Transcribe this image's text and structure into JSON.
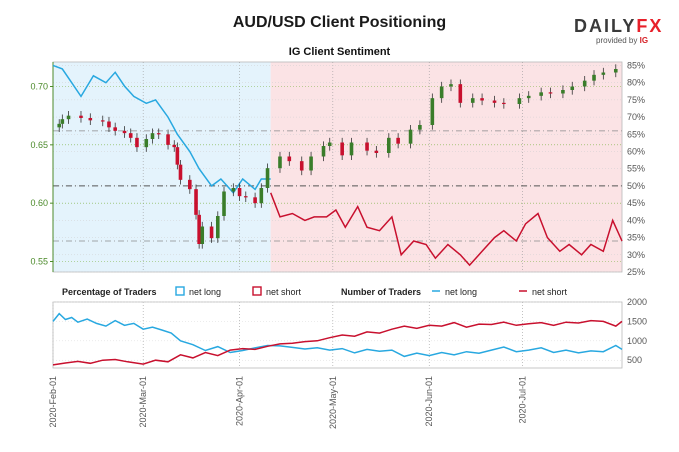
{
  "header": {
    "title": "AUD/USD Client Positioning",
    "logo_text_main": "DAILY",
    "logo_text_accent": "FX",
    "logo_byline": "provided by",
    "logo_byline_brand": "IG"
  },
  "chart_data": [
    {
      "type": "line",
      "title": "IG Client Sentiment",
      "x_date_ticks": [
        "2020-Feb-01",
        "2020-Mar-01",
        "2020-Apr-01",
        "2020-May-01",
        "2020-Jun-01",
        "2020-Jul-01"
      ],
      "y_left_ticks": [
        "0.70",
        "0.65",
        "0.60",
        "0.55"
      ],
      "y_right_ticks": [
        "85%",
        "80%",
        "75%",
        "70%",
        "65%",
        "60%",
        "55%",
        "50%",
        "45%",
        "40%",
        "35%",
        "30%",
        "25%"
      ],
      "y_left_range": [
        0.541,
        0.721
      ],
      "y_right_range": [
        25,
        86
      ],
      "reference_lines_pct": [
        66,
        50,
        34
      ],
      "colors": {
        "net_long": "#28a8e0",
        "net_short": "#c8102e",
        "candle_up": "#3a7d2a",
        "candle_down": "#c8102e",
        "long_region": "#e4f3fc",
        "short_region": "#fbe3e5"
      },
      "series": [
        {
          "name": "AUD/USD price",
          "kind": "candlestick",
          "close_by_date": [
            [
              "2020-02-03",
              0.668
            ],
            [
              "2020-02-04",
              0.672
            ],
            [
              "2020-02-06",
              0.675
            ],
            [
              "2020-02-10",
              0.673
            ],
            [
              "2020-02-13",
              0.671
            ],
            [
              "2020-02-17",
              0.67
            ],
            [
              "2020-02-19",
              0.665
            ],
            [
              "2020-02-21",
              0.662
            ],
            [
              "2020-02-24",
              0.66
            ],
            [
              "2020-02-26",
              0.656
            ],
            [
              "2020-02-28",
              0.648
            ],
            [
              "2020-03-02",
              0.655
            ],
            [
              "2020-03-04",
              0.66
            ],
            [
              "2020-03-06",
              0.659
            ],
            [
              "2020-03-09",
              0.65
            ],
            [
              "2020-03-11",
              0.648
            ],
            [
              "2020-03-12",
              0.633
            ],
            [
              "2020-03-13",
              0.62
            ],
            [
              "2020-03-16",
              0.612
            ],
            [
              "2020-03-18",
              0.59
            ],
            [
              "2020-03-19",
              0.565
            ],
            [
              "2020-03-20",
              0.58
            ],
            [
              "2020-03-23",
              0.57
            ],
            [
              "2020-03-25",
              0.589
            ],
            [
              "2020-03-27",
              0.61
            ],
            [
              "2020-03-30",
              0.613
            ],
            [
              "2020-04-01",
              0.606
            ],
            [
              "2020-04-03",
              0.605
            ],
            [
              "2020-04-06",
              0.6
            ],
            [
              "2020-04-08",
              0.613
            ],
            [
              "2020-04-10",
              0.63
            ],
            [
              "2020-04-14",
              0.64
            ],
            [
              "2020-04-17",
              0.636
            ],
            [
              "2020-04-21",
              0.628
            ],
            [
              "2020-04-24",
              0.64
            ],
            [
              "2020-04-28",
              0.649
            ],
            [
              "2020-04-30",
              0.652
            ],
            [
              "2020-05-04",
              0.641
            ],
            [
              "2020-05-07",
              0.652
            ],
            [
              "2020-05-12",
              0.645
            ],
            [
              "2020-05-15",
              0.643
            ],
            [
              "2020-05-19",
              0.656
            ],
            [
              "2020-05-22",
              0.651
            ],
            [
              "2020-05-26",
              0.663
            ],
            [
              "2020-05-29",
              0.667
            ],
            [
              "2020-06-02",
              0.69
            ],
            [
              "2020-06-05",
              0.7
            ],
            [
              "2020-06-08",
              0.702
            ],
            [
              "2020-06-11",
              0.686
            ],
            [
              "2020-06-15",
              0.69
            ],
            [
              "2020-06-18",
              0.688
            ],
            [
              "2020-06-22",
              0.686
            ],
            [
              "2020-06-25",
              0.685
            ],
            [
              "2020-06-30",
              0.69
            ],
            [
              "2020-07-03",
              0.692
            ],
            [
              "2020-07-07",
              0.695
            ],
            [
              "2020-07-10",
              0.694
            ],
            [
              "2020-07-14",
              0.697
            ],
            [
              "2020-07-17",
              0.7
            ],
            [
              "2020-07-21",
              0.705
            ],
            [
              "2020-07-24",
              0.71
            ],
            [
              "2020-07-27",
              0.712
            ],
            [
              "2020-07-31",
              0.715
            ]
          ]
        },
        {
          "name": "net long",
          "unit": "%",
          "values_by_date": [
            [
              "2020-02-01",
              85
            ],
            [
              "2020-02-04",
              84
            ],
            [
              "2020-02-07",
              80
            ],
            [
              "2020-02-10",
              76
            ],
            [
              "2020-02-14",
              82
            ],
            [
              "2020-02-18",
              80
            ],
            [
              "2020-02-21",
              83
            ],
            [
              "2020-02-24",
              79
            ],
            [
              "2020-02-27",
              76
            ],
            [
              "2020-03-02",
              74
            ],
            [
              "2020-03-05",
              75
            ],
            [
              "2020-03-09",
              70
            ],
            [
              "2020-03-12",
              65
            ],
            [
              "2020-03-16",
              60
            ],
            [
              "2020-03-19",
              55
            ],
            [
              "2020-03-23",
              50
            ],
            [
              "2020-03-26",
              52
            ],
            [
              "2020-03-30",
              48
            ],
            [
              "2020-04-02",
              52
            ],
            [
              "2020-04-06",
              49
            ],
            [
              "2020-04-08",
              52
            ],
            [
              "2020-04-11",
              52
            ]
          ]
        },
        {
          "name": "net short",
          "unit": "%",
          "values_by_date": [
            [
              "2020-04-11",
              48
            ],
            [
              "2020-04-14",
              41
            ],
            [
              "2020-04-18",
              42
            ],
            [
              "2020-04-22",
              40
            ],
            [
              "2020-04-25",
              41
            ],
            [
              "2020-04-29",
              41
            ],
            [
              "2020-05-02",
              43
            ],
            [
              "2020-05-05",
              38
            ],
            [
              "2020-05-09",
              44
            ],
            [
              "2020-05-12",
              38
            ],
            [
              "2020-05-16",
              37
            ],
            [
              "2020-05-20",
              41
            ],
            [
              "2020-05-23",
              30
            ],
            [
              "2020-05-27",
              34
            ],
            [
              "2020-05-31",
              33
            ],
            [
              "2020-06-03",
              29
            ],
            [
              "2020-06-07",
              33
            ],
            [
              "2020-06-11",
              30
            ],
            [
              "2020-06-14",
              27
            ],
            [
              "2020-06-18",
              31
            ],
            [
              "2020-06-22",
              35
            ],
            [
              "2020-06-25",
              37
            ],
            [
              "2020-06-29",
              34
            ],
            [
              "2020-07-02",
              39
            ],
            [
              "2020-07-06",
              42
            ],
            [
              "2020-07-09",
              35
            ],
            [
              "2020-07-13",
              31
            ],
            [
              "2020-07-16",
              33
            ],
            [
              "2020-07-20",
              30
            ],
            [
              "2020-07-23",
              33
            ],
            [
              "2020-07-27",
              31
            ],
            [
              "2020-07-30",
              40
            ],
            [
              "2020-08-02",
              34
            ]
          ]
        }
      ]
    },
    {
      "type": "line",
      "title_left": "Percentage of Traders",
      "title_right": "Number of Traders",
      "legend_pct": [
        "net long",
        "net short"
      ],
      "legend_num": [
        "net long",
        "net short"
      ],
      "y_right_ticks": [
        "2000",
        "1500",
        "1000",
        "500"
      ],
      "y_range": [
        300,
        2000
      ],
      "series": [
        {
          "name": "net long",
          "values_by_date": [
            [
              "2020-02-01",
              1500
            ],
            [
              "2020-02-03",
              1700
            ],
            [
              "2020-02-05",
              1550
            ],
            [
              "2020-02-07",
              1600
            ],
            [
              "2020-02-09",
              1480
            ],
            [
              "2020-02-12",
              1560
            ],
            [
              "2020-02-15",
              1450
            ],
            [
              "2020-02-18",
              1380
            ],
            [
              "2020-02-21",
              1520
            ],
            [
              "2020-02-24",
              1400
            ],
            [
              "2020-02-27",
              1450
            ],
            [
              "2020-03-01",
              1300
            ],
            [
              "2020-03-04",
              1350
            ],
            [
              "2020-03-07",
              1280
            ],
            [
              "2020-03-10",
              1200
            ],
            [
              "2020-03-13",
              1000
            ],
            [
              "2020-03-17",
              900
            ],
            [
              "2020-03-21",
              750
            ],
            [
              "2020-03-25",
              850
            ],
            [
              "2020-03-29",
              700
            ],
            [
              "2020-04-02",
              750
            ],
            [
              "2020-04-06",
              820
            ],
            [
              "2020-04-10",
              880
            ],
            [
              "2020-04-14",
              870
            ],
            [
              "2020-04-18",
              830
            ],
            [
              "2020-04-22",
              790
            ],
            [
              "2020-04-26",
              820
            ],
            [
              "2020-04-30",
              760
            ],
            [
              "2020-05-04",
              800
            ],
            [
              "2020-05-08",
              690
            ],
            [
              "2020-05-12",
              780
            ],
            [
              "2020-05-16",
              730
            ],
            [
              "2020-05-20",
              760
            ],
            [
              "2020-05-24",
              600
            ],
            [
              "2020-05-28",
              680
            ],
            [
              "2020-06-01",
              620
            ],
            [
              "2020-06-05",
              700
            ],
            [
              "2020-06-09",
              640
            ],
            [
              "2020-06-13",
              720
            ],
            [
              "2020-06-17",
              680
            ],
            [
              "2020-06-21",
              760
            ],
            [
              "2020-06-25",
              840
            ],
            [
              "2020-06-29",
              720
            ],
            [
              "2020-07-03",
              760
            ],
            [
              "2020-07-07",
              820
            ],
            [
              "2020-07-11",
              700
            ],
            [
              "2020-07-15",
              760
            ],
            [
              "2020-07-19",
              690
            ],
            [
              "2020-07-23",
              740
            ],
            [
              "2020-07-27",
              720
            ],
            [
              "2020-07-31",
              880
            ],
            [
              "2020-08-02",
              780
            ]
          ]
        },
        {
          "name": "net short",
          "values_by_date": [
            [
              "2020-02-01",
              380
            ],
            [
              "2020-02-05",
              430
            ],
            [
              "2020-02-09",
              470
            ],
            [
              "2020-02-13",
              420
            ],
            [
              "2020-02-17",
              500
            ],
            [
              "2020-02-21",
              520
            ],
            [
              "2020-02-25",
              460
            ],
            [
              "2020-03-01",
              400
            ],
            [
              "2020-03-05",
              500
            ],
            [
              "2020-03-09",
              460
            ],
            [
              "2020-03-13",
              640
            ],
            [
              "2020-03-17",
              560
            ],
            [
              "2020-03-21",
              700
            ],
            [
              "2020-03-25",
              620
            ],
            [
              "2020-03-29",
              760
            ],
            [
              "2020-04-02",
              800
            ],
            [
              "2020-04-06",
              780
            ],
            [
              "2020-04-10",
              860
            ],
            [
              "2020-04-14",
              920
            ],
            [
              "2020-04-18",
              940
            ],
            [
              "2020-04-22",
              980
            ],
            [
              "2020-04-26",
              1000
            ],
            [
              "2020-04-30",
              1080
            ],
            [
              "2020-05-04",
              1150
            ],
            [
              "2020-05-08",
              1120
            ],
            [
              "2020-05-12",
              1230
            ],
            [
              "2020-05-16",
              1200
            ],
            [
              "2020-05-20",
              1300
            ],
            [
              "2020-05-24",
              1380
            ],
            [
              "2020-05-28",
              1320
            ],
            [
              "2020-06-01",
              1400
            ],
            [
              "2020-06-05",
              1380
            ],
            [
              "2020-06-09",
              1470
            ],
            [
              "2020-06-13",
              1350
            ],
            [
              "2020-06-17",
              1430
            ],
            [
              "2020-06-21",
              1420
            ],
            [
              "2020-06-25",
              1480
            ],
            [
              "2020-06-29",
              1400
            ],
            [
              "2020-07-03",
              1440
            ],
            [
              "2020-07-07",
              1470
            ],
            [
              "2020-07-11",
              1400
            ],
            [
              "2020-07-15",
              1480
            ],
            [
              "2020-07-19",
              1460
            ],
            [
              "2020-07-23",
              1520
            ],
            [
              "2020-07-27",
              1500
            ],
            [
              "2020-07-31",
              1380
            ],
            [
              "2020-08-02",
              1500
            ]
          ]
        }
      ]
    }
  ]
}
